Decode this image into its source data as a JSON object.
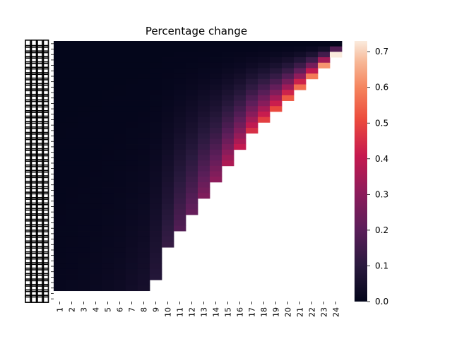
{
  "chart_data": {
    "type": "heatmap",
    "title": "Percentage change",
    "xlabel": "",
    "ylabel": "",
    "x_categories": [
      "1",
      "2",
      "3",
      "4",
      "5",
      "6",
      "7",
      "8",
      "9",
      "10",
      "11",
      "12",
      "13",
      "14",
      "15",
      "16",
      "17",
      "18",
      "19",
      "20",
      "21",
      "22",
      "23",
      "24"
    ],
    "n_rows": 48,
    "row_labels_legible": false,
    "valid_rows_per_column": [
      46,
      46,
      46,
      46,
      46,
      46,
      46,
      46,
      44,
      38,
      35,
      32,
      29,
      26,
      23,
      20,
      17,
      15,
      13,
      11,
      9,
      7,
      5,
      3
    ],
    "value_scale": {
      "per_column_max": [
        0.008,
        0.01,
        0.012,
        0.015,
        0.02,
        0.025,
        0.035,
        0.045,
        0.08,
        0.12,
        0.18,
        0.22,
        0.27,
        0.3,
        0.36,
        0.4,
        0.45,
        0.48,
        0.5,
        0.53,
        0.56,
        0.58,
        0.62,
        0.73
      ],
      "row_gradient": "values increase from top row toward the last valid row of each column"
    },
    "colorbar": {
      "min": 0.0,
      "max": 0.73,
      "ticks": [
        "0.0",
        "0.1",
        "0.2",
        "0.3",
        "0.4",
        "0.5",
        "0.6",
        "0.7"
      ],
      "colormap": "rocket"
    }
  }
}
